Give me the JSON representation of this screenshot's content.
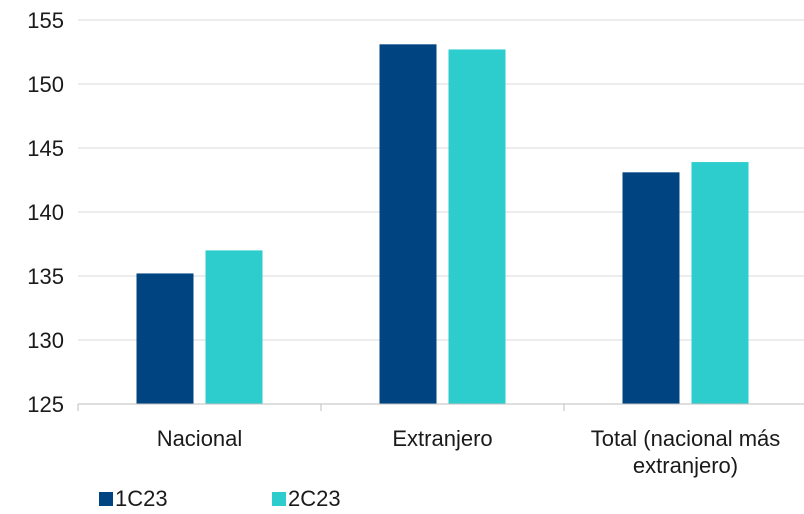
{
  "chart_data": {
    "type": "bar",
    "categories": [
      [
        "Nacional"
      ],
      [
        "Extranjero"
      ],
      [
        "Total (nacional más",
        "extranjero)"
      ]
    ],
    "series": [
      {
        "name": "1C23",
        "color": "#004481",
        "values": [
          135.2,
          153.1,
          143.1
        ]
      },
      {
        "name": "2C23",
        "color": "#2DCCCD",
        "values": [
          137.0,
          152.7,
          143.9
        ]
      }
    ],
    "ylim": [
      125,
      155
    ],
    "yticks": [
      125,
      130,
      135,
      140,
      145,
      150,
      155
    ],
    "grid": true,
    "legend_position": "bottom-left",
    "gridColor": "#d9d9d9",
    "axisColor": "#bfbfbf",
    "textColor": "#1a1a1a"
  }
}
